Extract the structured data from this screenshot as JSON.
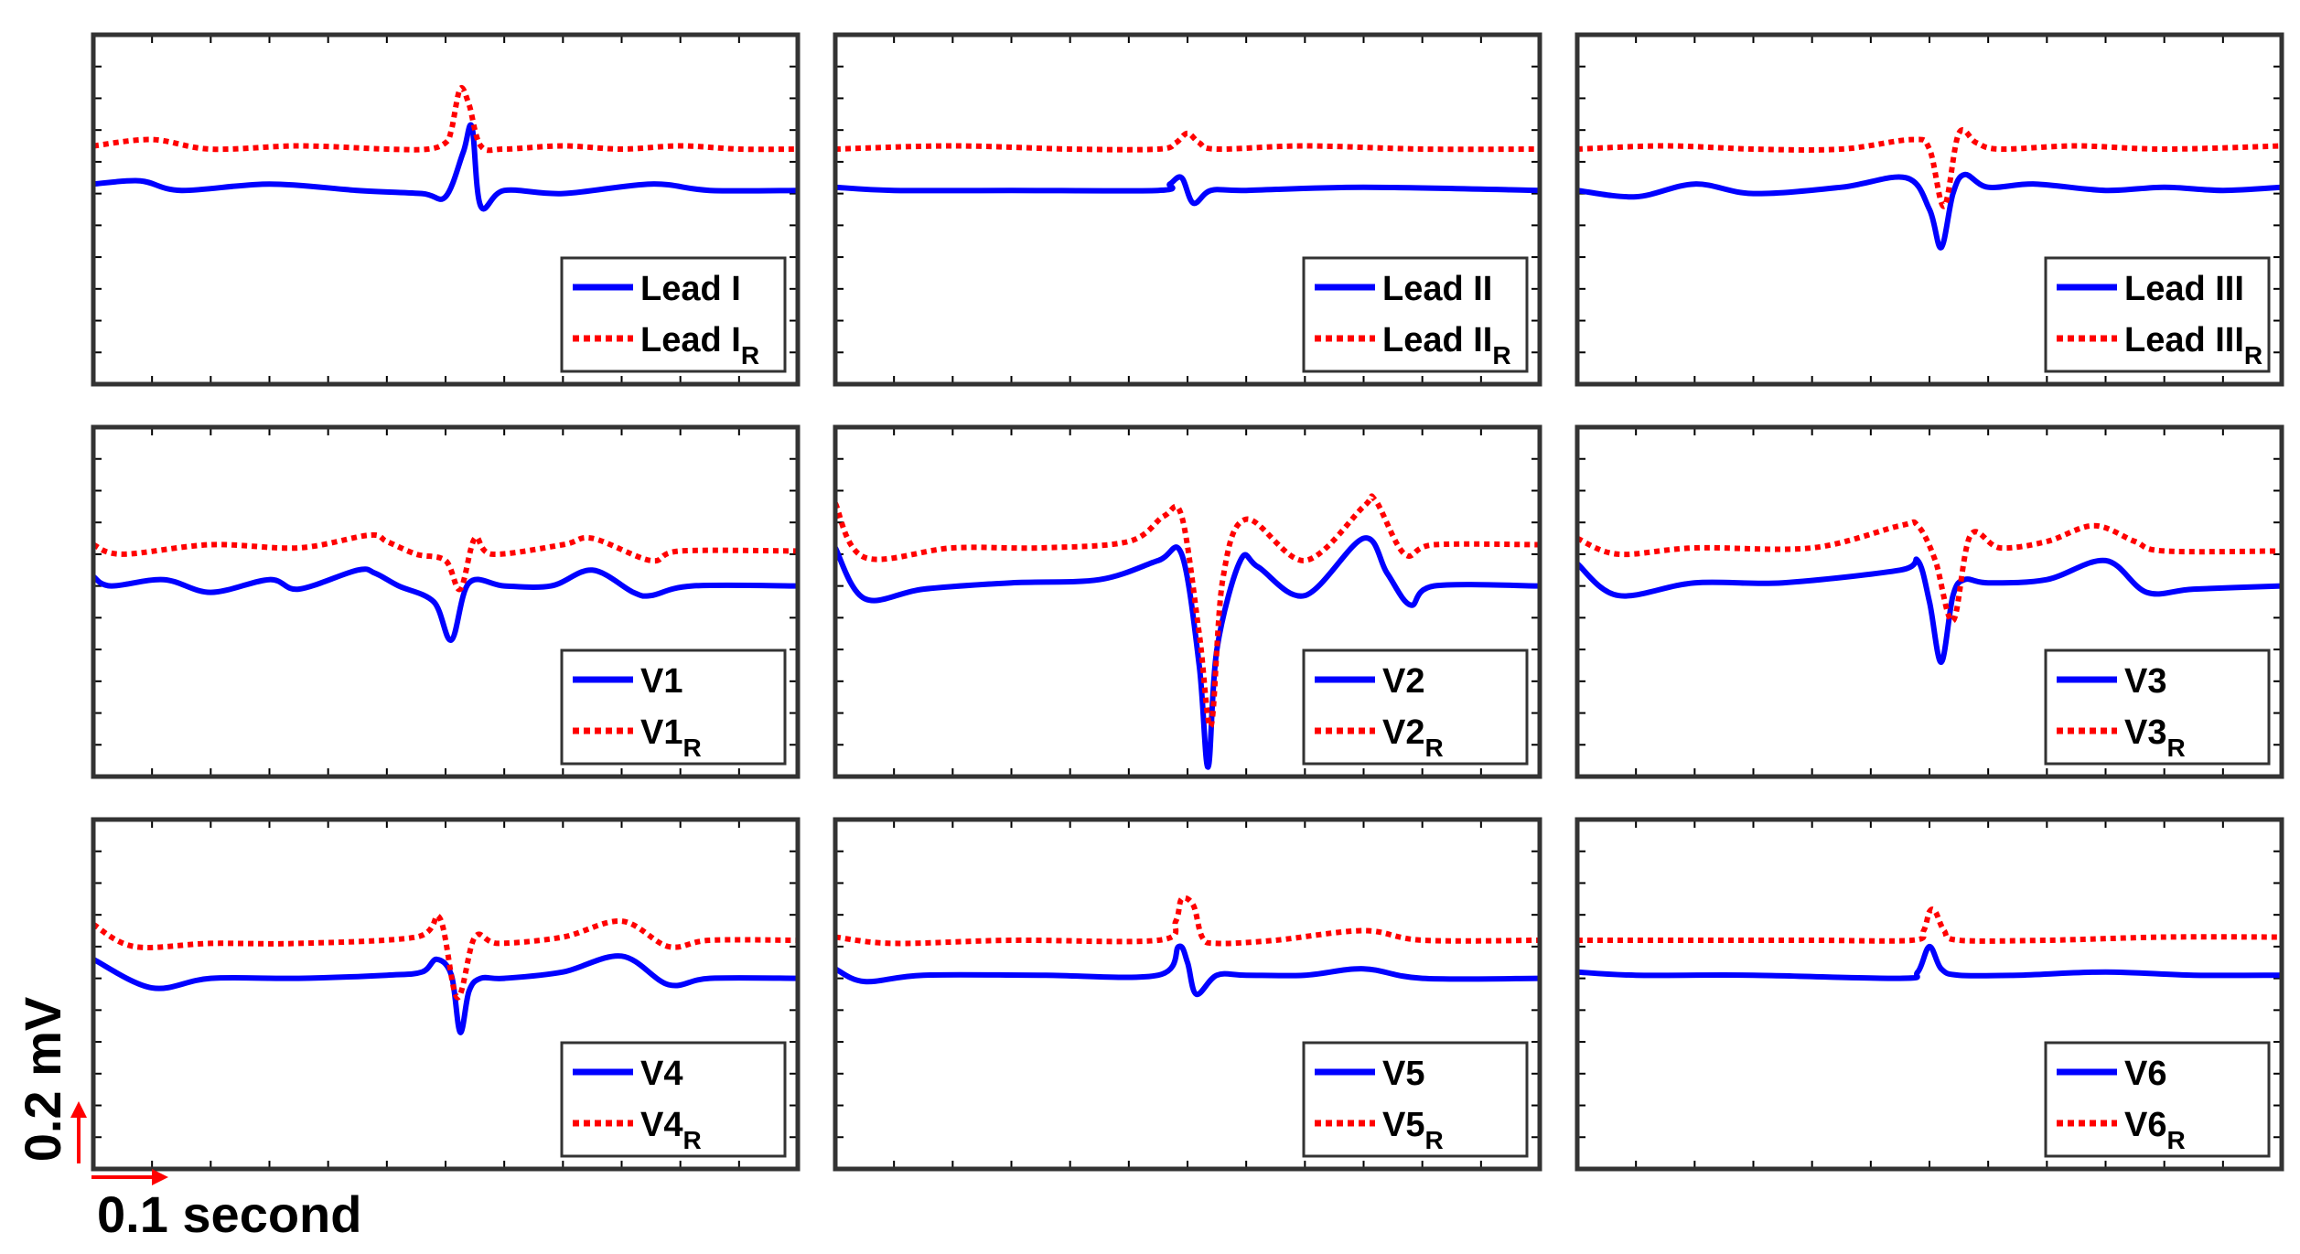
{
  "chart_data": {
    "type": "line",
    "x_unit": "seconds",
    "y_unit": "mV",
    "xlim": [
      0,
      1.2
    ],
    "ylim": [
      -0.6,
      0.5
    ],
    "x_ticks": [
      0,
      0.1,
      0.2,
      0.3,
      0.4,
      0.5,
      0.6,
      0.7,
      0.8,
      0.9,
      1.0,
      1.1,
      1.2
    ],
    "y_ticks": [
      -0.6,
      -0.5,
      -0.4,
      -0.3,
      -0.2,
      -0.1,
      0,
      0.1,
      0.2,
      0.3,
      0.4
    ],
    "y_scalebar": {
      "label": "0.2 mV",
      "value_mv": 0.2
    },
    "x_scalebar": {
      "label": "0.1 second",
      "value_s": 0.1
    },
    "series_styles": [
      {
        "style": "solid",
        "color": "#0000ff"
      },
      {
        "style": "dotted",
        "color": "#ff0000"
      }
    ],
    "panels": [
      {
        "id": "lead-i",
        "legend": [
          {
            "main": "Lead I"
          },
          {
            "main": "Lead I",
            "sub": "R"
          }
        ],
        "series": [
          {
            "name": "Lead I",
            "x": [
              0,
              0.08,
              0.15,
              0.3,
              0.45,
              0.56,
              0.6,
              0.63,
              0.645,
              0.66,
              0.7,
              0.8,
              0.95,
              1.05,
              1.2
            ],
            "y": [
              0.03,
              0.04,
              0.01,
              0.03,
              0.01,
              0.0,
              -0.01,
              0.13,
              0.21,
              -0.04,
              0.01,
              0.0,
              0.03,
              0.01,
              0.01
            ]
          },
          {
            "name": "Lead I_R",
            "x": [
              0,
              0.1,
              0.2,
              0.35,
              0.5,
              0.57,
              0.6,
              0.61,
              0.625,
              0.64,
              0.66,
              0.7,
              0.8,
              0.9,
              1.0,
              1.1,
              1.2
            ],
            "y": [
              0.15,
              0.17,
              0.14,
              0.15,
              0.14,
              0.14,
              0.16,
              0.2,
              0.33,
              0.28,
              0.15,
              0.14,
              0.15,
              0.14,
              0.15,
              0.14,
              0.14
            ]
          }
        ]
      },
      {
        "id": "lead-ii",
        "legend": [
          {
            "main": "Lead II"
          },
          {
            "main": "Lead II",
            "sub": "R"
          }
        ],
        "series": [
          {
            "name": "Lead II",
            "x": [
              0,
              0.1,
              0.3,
              0.55,
              0.57,
              0.59,
              0.61,
              0.64,
              0.7,
              0.9,
              1.2
            ],
            "y": [
              0.02,
              0.01,
              0.01,
              0.01,
              0.03,
              0.05,
              -0.03,
              0.01,
              0.01,
              0.02,
              0.01
            ]
          },
          {
            "name": "Lead II_R",
            "x": [
              0,
              0.2,
              0.4,
              0.55,
              0.58,
              0.6,
              0.62,
              0.65,
              0.8,
              1.0,
              1.2
            ],
            "y": [
              0.14,
              0.15,
              0.14,
              0.14,
              0.16,
              0.19,
              0.16,
              0.14,
              0.15,
              0.14,
              0.14
            ]
          }
        ]
      },
      {
        "id": "lead-iii",
        "legend": [
          {
            "main": "Lead III"
          },
          {
            "main": "Lead III",
            "sub": "R"
          }
        ],
        "series": [
          {
            "name": "Lead III",
            "x": [
              0,
              0.1,
              0.2,
              0.3,
              0.45,
              0.56,
              0.6,
              0.62,
              0.64,
              0.66,
              0.7,
              0.78,
              0.9,
              1.0,
              1.1,
              1.2
            ],
            "y": [
              0.01,
              -0.01,
              0.03,
              0.0,
              0.02,
              0.05,
              -0.05,
              -0.17,
              0.0,
              0.06,
              0.02,
              0.03,
              0.01,
              0.02,
              0.01,
              0.02
            ]
          },
          {
            "name": "Lead III_R",
            "x": [
              0,
              0.15,
              0.3,
              0.45,
              0.57,
              0.6,
              0.625,
              0.65,
              0.68,
              0.72,
              0.85,
              1.0,
              1.2
            ],
            "y": [
              0.14,
              0.15,
              0.14,
              0.14,
              0.17,
              0.14,
              -0.04,
              0.19,
              0.16,
              0.14,
              0.15,
              0.14,
              0.15
            ]
          }
        ]
      },
      {
        "id": "v1",
        "legend": [
          {
            "main": "V1"
          },
          {
            "main": "V1",
            "sub": "R"
          }
        ],
        "series": [
          {
            "name": "V1",
            "x": [
              0,
              0.03,
              0.12,
              0.2,
              0.3,
              0.35,
              0.45,
              0.48,
              0.52,
              0.58,
              0.61,
              0.64,
              0.7,
              0.78,
              0.85,
              0.92,
              0.95,
              1.02,
              1.2
            ],
            "y": [
              0.03,
              0.0,
              0.02,
              -0.02,
              0.02,
              -0.01,
              0.05,
              0.04,
              0.0,
              -0.05,
              -0.17,
              0.01,
              0.0,
              0.0,
              0.05,
              -0.02,
              -0.03,
              0.0,
              0.0
            ]
          },
          {
            "name": "V1_R",
            "x": [
              0,
              0.05,
              0.2,
              0.35,
              0.47,
              0.5,
              0.55,
              0.6,
              0.625,
              0.65,
              0.68,
              0.8,
              0.85,
              0.95,
              1.0,
              1.2
            ],
            "y": [
              0.13,
              0.1,
              0.13,
              0.12,
              0.16,
              0.14,
              0.1,
              0.08,
              -0.01,
              0.15,
              0.1,
              0.13,
              0.15,
              0.08,
              0.11,
              0.11
            ]
          }
        ]
      },
      {
        "id": "v2",
        "legend": [
          {
            "main": "V2"
          },
          {
            "main": "V2",
            "sub": "R"
          }
        ],
        "series": [
          {
            "name": "V2",
            "x": [
              0,
              0.05,
              0.15,
              0.3,
              0.45,
              0.55,
              0.59,
              0.62,
              0.635,
              0.65,
              0.69,
              0.72,
              0.8,
              0.9,
              0.94,
              0.98,
              1.02,
              1.2
            ],
            "y": [
              0.12,
              -0.04,
              -0.01,
              0.01,
              0.02,
              0.08,
              0.1,
              -0.25,
              -0.57,
              -0.2,
              0.08,
              0.06,
              -0.03,
              0.15,
              0.04,
              -0.06,
              0.0,
              0.0
            ]
          },
          {
            "name": "V2_R",
            "x": [
              0,
              0.05,
              0.2,
              0.35,
              0.5,
              0.56,
              0.59,
              0.62,
              0.64,
              0.66,
              0.7,
              0.8,
              0.9,
              0.92,
              0.97,
              1.02,
              1.2
            ],
            "y": [
              0.26,
              0.09,
              0.12,
              0.12,
              0.14,
              0.22,
              0.22,
              -0.15,
              -0.44,
              0.02,
              0.21,
              0.08,
              0.25,
              0.27,
              0.1,
              0.13,
              0.13
            ]
          }
        ]
      },
      {
        "id": "v3",
        "legend": [
          {
            "main": "V3"
          },
          {
            "main": "V3",
            "sub": "R"
          }
        ],
        "series": [
          {
            "name": "V3",
            "x": [
              0,
              0.07,
              0.2,
              0.35,
              0.55,
              0.58,
              0.6,
              0.62,
              0.64,
              0.66,
              0.7,
              0.8,
              0.9,
              0.97,
              1.05,
              1.2
            ],
            "y": [
              0.07,
              -0.03,
              0.01,
              0.01,
              0.05,
              0.08,
              -0.05,
              -0.24,
              -0.03,
              0.02,
              0.01,
              0.02,
              0.08,
              -0.02,
              -0.01,
              0.0
            ]
          },
          {
            "name": "V3_R",
            "x": [
              0,
              0.07,
              0.2,
              0.4,
              0.55,
              0.58,
              0.61,
              0.64,
              0.67,
              0.72,
              0.8,
              0.88,
              0.95,
              1.0,
              1.2
            ],
            "y": [
              0.15,
              0.1,
              0.12,
              0.12,
              0.19,
              0.19,
              0.08,
              -0.11,
              0.16,
              0.12,
              0.14,
              0.19,
              0.14,
              0.11,
              0.11
            ]
          }
        ]
      },
      {
        "id": "v4",
        "legend": [
          {
            "main": "V4"
          },
          {
            "main": "V4",
            "sub": "R"
          }
        ],
        "series": [
          {
            "name": "V4",
            "x": [
              0,
              0.1,
              0.2,
              0.35,
              0.5,
              0.56,
              0.585,
              0.61,
              0.625,
              0.64,
              0.66,
              0.7,
              0.8,
              0.9,
              0.98,
              1.05,
              1.2
            ],
            "y": [
              0.06,
              -0.03,
              0.0,
              0.0,
              0.01,
              0.02,
              0.06,
              0.01,
              -0.17,
              -0.04,
              0.0,
              0.0,
              0.02,
              0.07,
              -0.02,
              0.0,
              0.0
            ]
          },
          {
            "name": "V4_R",
            "x": [
              0,
              0.07,
              0.2,
              0.35,
              0.55,
              0.59,
              0.62,
              0.65,
              0.69,
              0.8,
              0.9,
              0.98,
              1.05,
              1.2
            ],
            "y": [
              0.17,
              0.1,
              0.11,
              0.11,
              0.13,
              0.19,
              -0.06,
              0.13,
              0.11,
              0.13,
              0.18,
              0.1,
              0.12,
              0.12
            ]
          }
        ]
      },
      {
        "id": "v5",
        "legend": [
          {
            "main": "V5"
          },
          {
            "main": "V5",
            "sub": "R"
          }
        ],
        "series": [
          {
            "name": "V5",
            "x": [
              0,
              0.05,
              0.15,
              0.35,
              0.55,
              0.585,
              0.6,
              0.615,
              0.65,
              0.7,
              0.8,
              0.9,
              1.0,
              1.2
            ],
            "y": [
              0.03,
              -0.01,
              0.01,
              0.01,
              0.01,
              0.1,
              0.05,
              -0.05,
              0.01,
              0.01,
              0.01,
              0.03,
              0.0,
              0.0
            ]
          },
          {
            "name": "V5_R",
            "x": [
              0,
              0.1,
              0.3,
              0.55,
              0.58,
              0.59,
              0.61,
              0.625,
              0.65,
              0.75,
              0.9,
              1.0,
              1.2
            ],
            "y": [
              0.13,
              0.11,
              0.12,
              0.12,
              0.18,
              0.25,
              0.23,
              0.13,
              0.11,
              0.12,
              0.15,
              0.12,
              0.12
            ]
          }
        ]
      },
      {
        "id": "v6",
        "legend": [
          {
            "main": "V6"
          },
          {
            "main": "V6",
            "sub": "R"
          }
        ],
        "series": [
          {
            "name": "V6",
            "x": [
              0,
              0.1,
              0.3,
              0.55,
              0.58,
              0.6,
              0.62,
              0.65,
              0.75,
              0.9,
              1.05,
              1.2
            ],
            "y": [
              0.02,
              0.01,
              0.01,
              0.0,
              0.02,
              0.1,
              0.03,
              0.01,
              0.01,
              0.02,
              0.01,
              0.01
            ]
          },
          {
            "name": "V6_R",
            "x": [
              0,
              0.2,
              0.4,
              0.57,
              0.59,
              0.6,
              0.61,
              0.625,
              0.65,
              0.8,
              1.0,
              1.2
            ],
            "y": [
              0.12,
              0.12,
              0.12,
              0.12,
              0.15,
              0.21,
              0.21,
              0.15,
              0.12,
              0.12,
              0.13,
              0.13
            ]
          }
        ]
      }
    ]
  }
}
